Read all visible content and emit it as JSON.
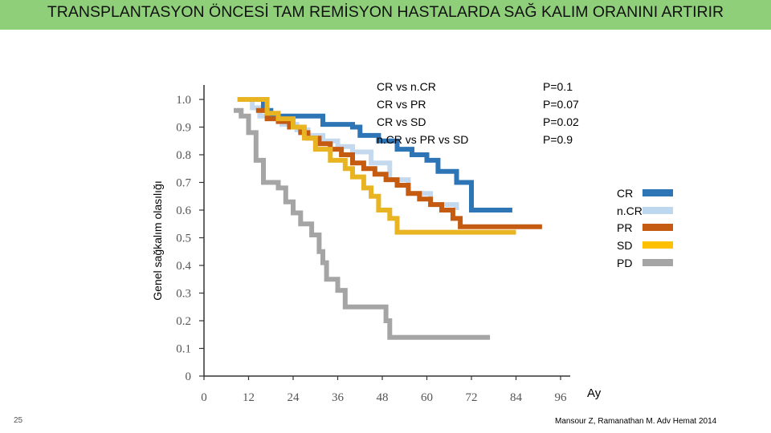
{
  "header": {
    "title": "TRANSPLANTASYON ÖNCESİ TAM REMİSYON HASTALARDA SAĞ KALIM ORANINI ARTIRIR"
  },
  "footer": {
    "page_number": "25",
    "source": "Mansour Z, Ramanathan M. Adv Hemat 2014"
  },
  "colors": {
    "title_bar": "#8fcf7a"
  },
  "chart_data": {
    "type": "line",
    "step": true,
    "title": "",
    "xlabel": "Ay",
    "ylabel": "Genel sağkalım olasılığı",
    "xlim": [
      0,
      96
    ],
    "ylim": [
      0,
      1.0
    ],
    "x_ticks": [
      "0",
      "12",
      "24",
      "36",
      "48",
      "60",
      "72",
      "84",
      "96"
    ],
    "y_ticks": [
      "0",
      "0.1",
      "0.2",
      "0.3",
      "0.4",
      "0.5",
      "0.6",
      "0.7",
      "0.8",
      "0.9",
      "1.0"
    ],
    "grid": false,
    "legend": "right",
    "legend_entries": [
      {
        "name": "CR",
        "color": "#2e75b6"
      },
      {
        "name": "n.CR",
        "color": "#bdd7ee"
      },
      {
        "name": "PR",
        "color": "#c55a11"
      },
      {
        "name": "SD",
        "color": "#ffc000"
      },
      {
        "name": "PD",
        "color": "#a5a5a5"
      }
    ],
    "comparisons": [
      {
        "test": "CR vs n.CR",
        "p": "P=0.1"
      },
      {
        "test": "CR vs PR",
        "p": "P=0.07"
      },
      {
        "test": "CR vs SD",
        "p": "P=0.02"
      },
      {
        "test": "n.CR vs PR vs SD",
        "p": "P=0.9"
      }
    ],
    "series": [
      {
        "name": "n.CR",
        "color": "#c5d9ee",
        "points": [
          [
            10,
            1.0
          ],
          [
            13,
            0.97
          ],
          [
            15,
            0.94
          ],
          [
            18,
            0.93
          ],
          [
            21,
            0.91
          ],
          [
            25,
            0.89
          ],
          [
            28,
            0.87
          ],
          [
            32,
            0.85
          ],
          [
            36,
            0.83
          ],
          [
            40,
            0.81
          ],
          [
            45,
            0.77
          ],
          [
            50,
            0.71
          ],
          [
            55,
            0.66
          ],
          [
            61,
            0.62
          ],
          [
            68,
            0.6
          ]
        ]
      },
      {
        "name": "CR",
        "color": "#2e75b6",
        "points": [
          [
            13,
            1.0
          ],
          [
            16,
            0.96
          ],
          [
            18,
            0.94
          ],
          [
            22,
            0.94
          ],
          [
            28,
            0.94
          ],
          [
            32,
            0.91
          ],
          [
            40,
            0.9
          ],
          [
            42,
            0.87
          ],
          [
            47,
            0.85
          ],
          [
            52,
            0.82
          ],
          [
            56,
            0.8
          ],
          [
            60,
            0.78
          ],
          [
            63,
            0.74
          ],
          [
            68,
            0.7
          ],
          [
            72,
            0.6
          ],
          [
            80,
            0.6
          ],
          [
            83,
            0.6
          ]
        ]
      },
      {
        "name": "PR",
        "color": "#c55a11",
        "points": [
          [
            14,
            0.96
          ],
          [
            17,
            0.93
          ],
          [
            20,
            0.92
          ],
          [
            23,
            0.9
          ],
          [
            26,
            0.88
          ],
          [
            28,
            0.86
          ],
          [
            31,
            0.84
          ],
          [
            34,
            0.82
          ],
          [
            37,
            0.8
          ],
          [
            40,
            0.77
          ],
          [
            43,
            0.75
          ],
          [
            46,
            0.73
          ],
          [
            49,
            0.71
          ],
          [
            52,
            0.69
          ],
          [
            55,
            0.66
          ],
          [
            58,
            0.64
          ],
          [
            61,
            0.62
          ],
          [
            64,
            0.6
          ],
          [
            67,
            0.57
          ],
          [
            69,
            0.54
          ],
          [
            80,
            0.54
          ],
          [
            91,
            0.54
          ]
        ]
      },
      {
        "name": "SD",
        "color": "#e8b422",
        "points": [
          [
            9,
            1.0
          ],
          [
            15,
            1.0
          ],
          [
            17,
            0.95
          ],
          [
            20,
            0.93
          ],
          [
            24,
            0.9
          ],
          [
            27,
            0.86
          ],
          [
            30,
            0.82
          ],
          [
            34,
            0.78
          ],
          [
            38,
            0.75
          ],
          [
            40,
            0.72
          ],
          [
            43,
            0.68
          ],
          [
            45,
            0.65
          ],
          [
            47,
            0.6
          ],
          [
            50,
            0.57
          ],
          [
            52,
            0.52
          ],
          [
            60,
            0.52
          ],
          [
            70,
            0.52
          ],
          [
            84,
            0.52
          ]
        ]
      },
      {
        "name": "PD",
        "color": "#a5a5a5",
        "points": [
          [
            8,
            0.96
          ],
          [
            10,
            0.94
          ],
          [
            12,
            0.88
          ],
          [
            14,
            0.78
          ],
          [
            16,
            0.7
          ],
          [
            20,
            0.68
          ],
          [
            22,
            0.63
          ],
          [
            24,
            0.59
          ],
          [
            26,
            0.55
          ],
          [
            29,
            0.51
          ],
          [
            31,
            0.45
          ],
          [
            32,
            0.41
          ],
          [
            33,
            0.35
          ],
          [
            36,
            0.31
          ],
          [
            38,
            0.25
          ],
          [
            46,
            0.25
          ],
          [
            49,
            0.2
          ],
          [
            50,
            0.14
          ],
          [
            60,
            0.14
          ],
          [
            77,
            0.14
          ]
        ]
      }
    ]
  }
}
